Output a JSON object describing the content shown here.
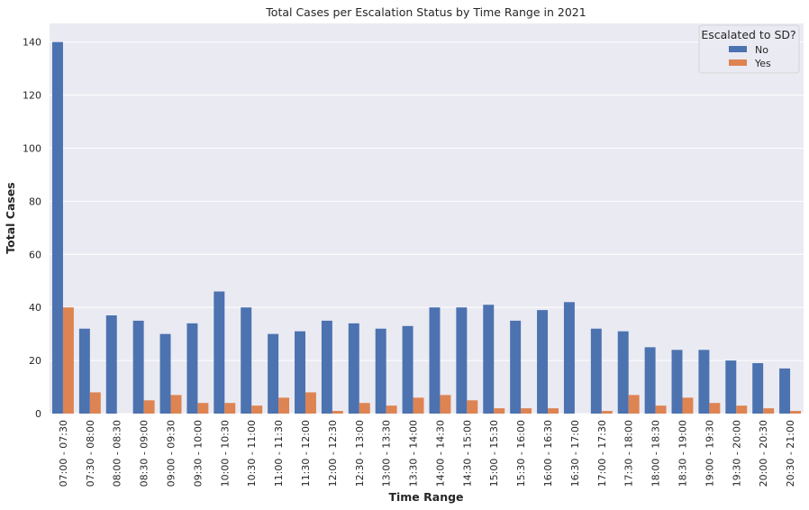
{
  "chart_data": {
    "type": "bar",
    "title": "Total Cases per Escalation Status by Time Range in 2021",
    "xlabel": "Time Range",
    "ylabel": "Total Cases",
    "ylim": [
      0,
      147
    ],
    "yticks": [
      0,
      20,
      40,
      60,
      80,
      100,
      120,
      140
    ],
    "grid": true,
    "legend_position": "top-right",
    "legend_title": "Escalated to SD?",
    "categories": [
      "07:00 - 07:30",
      "07:30 - 08:00",
      "08:00 - 08:30",
      "08:30 - 09:00",
      "09:00 - 09:30",
      "09:30 - 10:00",
      "10:00 - 10:30",
      "10:30 - 11:00",
      "11:00 - 11:30",
      "11:30 - 12:00",
      "12:00 - 12:30",
      "12:30 - 13:00",
      "13:00 - 13:30",
      "13:30 - 14:00",
      "14:00 - 14:30",
      "14:30 - 15:00",
      "15:00 - 15:30",
      "15:30 - 16:00",
      "16:00 - 16:30",
      "16:30 - 17:00",
      "17:00 - 17:30",
      "17:30 - 18:00",
      "18:00 - 18:30",
      "18:30 - 19:00",
      "19:00 - 19:30",
      "19:30 - 20:00",
      "20:00 - 20:30",
      "20:30 - 21:00"
    ],
    "series": [
      {
        "name": "No",
        "color": "#4c72b0",
        "values": [
          140,
          32,
          37,
          35,
          30,
          34,
          46,
          40,
          30,
          31,
          35,
          34,
          32,
          33,
          40,
          40,
          41,
          35,
          39,
          42,
          32,
          31,
          25,
          24,
          24,
          20,
          19,
          17
        ]
      },
      {
        "name": "Yes",
        "color": "#dd8452",
        "values": [
          40,
          8,
          0,
          5,
          7,
          4,
          4,
          3,
          6,
          8,
          1,
          4,
          3,
          6,
          7,
          5,
          2,
          2,
          2,
          0,
          1,
          7,
          3,
          6,
          4,
          3,
          2,
          1
        ]
      }
    ]
  },
  "colors": {
    "plot_background": "#eaeaf2",
    "grid": "#ffffff"
  }
}
